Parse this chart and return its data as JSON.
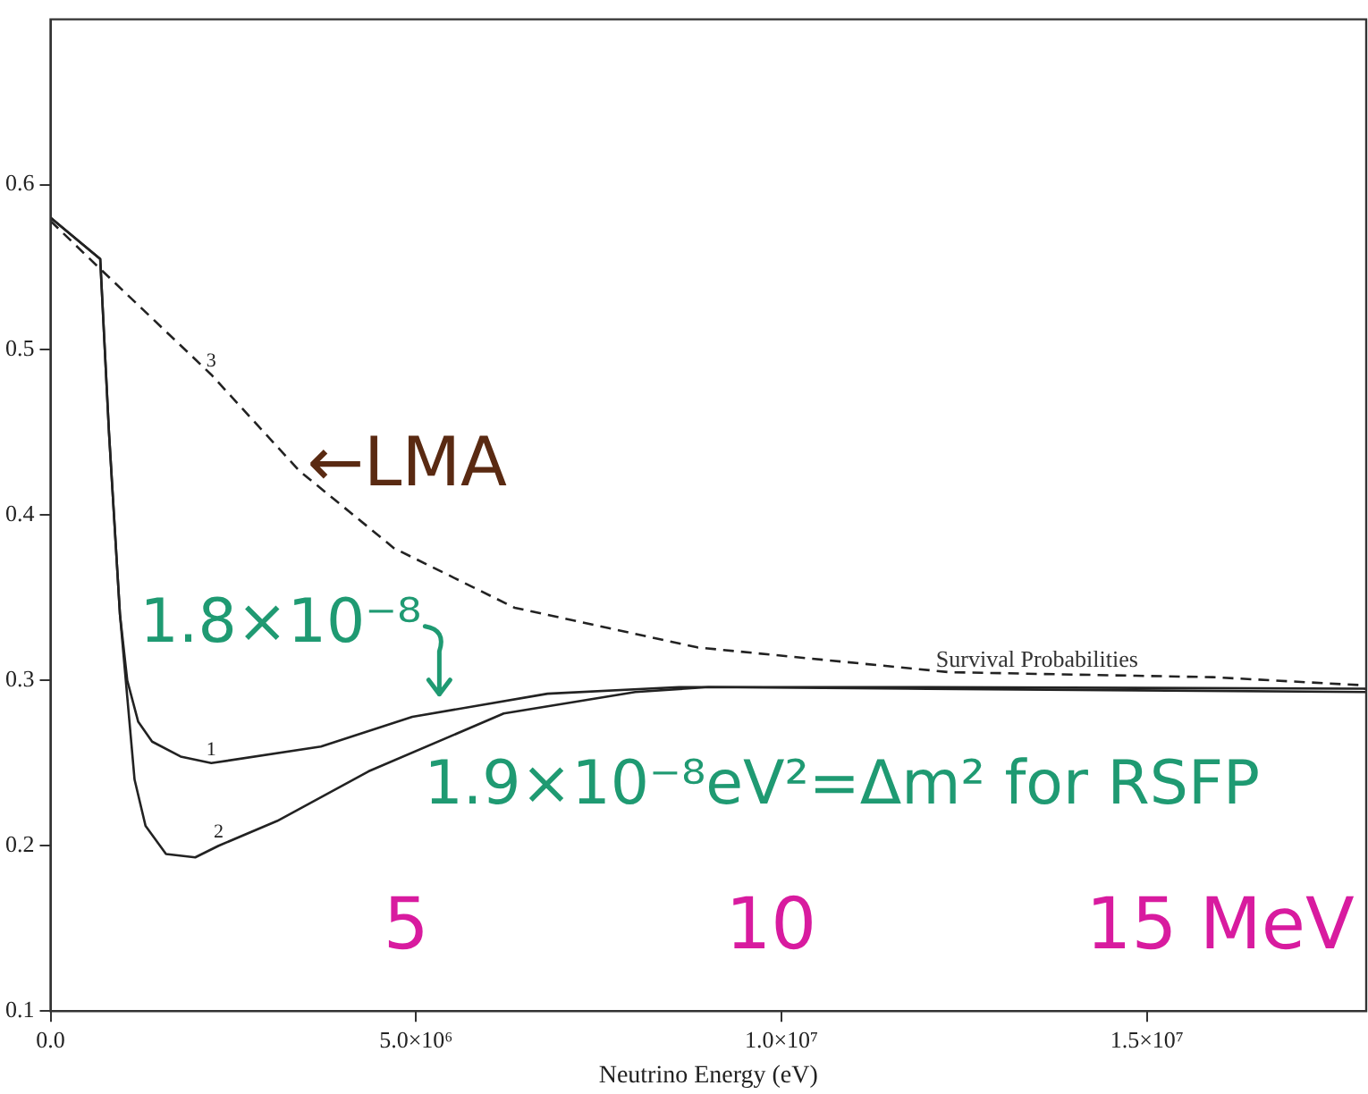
{
  "chart_data": {
    "type": "line",
    "xlabel": "Neutrino Energy (eV)",
    "xlim": [
      0,
      18000000
    ],
    "xticks": [
      {
        "value": 0,
        "label": "0.0"
      },
      {
        "value": 5000000,
        "label": "5.0×10⁶"
      },
      {
        "value": 10000000,
        "label": "1.0×10⁷"
      },
      {
        "value": 15000000,
        "label": "1.5×10⁷"
      }
    ],
    "ylim": [
      0.1,
      0.7
    ],
    "yticks": [
      0.1,
      0.2,
      0.3,
      0.4,
      0.5,
      0.6
    ],
    "grid": false,
    "legend": false,
    "marker": "none",
    "series": [
      {
        "name": "1",
        "color": "#222222",
        "line_style": "solid",
        "x": [
          0,
          680000,
          800000,
          950000,
          1050000,
          1200000,
          1390000,
          1780000,
          2200000,
          3700000,
          4950000,
          6800000,
          8600000,
          12000000,
          18000000
        ],
        "values": [
          0.58,
          0.555,
          0.45,
          0.34,
          0.3,
          0.275,
          0.263,
          0.254,
          0.25,
          0.26,
          0.278,
          0.292,
          0.296,
          0.296,
          0.295
        ]
      },
      {
        "name": "2",
        "color": "#222222",
        "line_style": "solid",
        "x": [
          0,
          680000,
          800000,
          950000,
          1050000,
          1150000,
          1300000,
          1580000,
          1980000,
          2300000,
          3100000,
          4350000,
          6200000,
          8000000,
          9000000,
          12000000,
          18000000
        ],
        "values": [
          0.58,
          0.555,
          0.45,
          0.34,
          0.29,
          0.24,
          0.212,
          0.195,
          0.193,
          0.2,
          0.215,
          0.245,
          0.28,
          0.293,
          0.296,
          0.295,
          0.293
        ]
      },
      {
        "name": "3",
        "color": "#222222",
        "line_style": "dashed",
        "x": [
          0,
          680000,
          2200000,
          3400000,
          4700000,
          6350000,
          8850000,
          12300000,
          15900000,
          18000000
        ],
        "values": [
          0.578,
          0.549,
          0.485,
          0.427,
          0.38,
          0.344,
          0.32,
          0.305,
          0.302,
          0.297
        ]
      }
    ],
    "annotations": [
      "←LMA",
      "1.8×10⁻⁸",
      "1.9×10⁻⁸eV²=Δm² for RSFP",
      "5",
      "10",
      "15 MeV",
      "Survival Probabilities"
    ]
  }
}
